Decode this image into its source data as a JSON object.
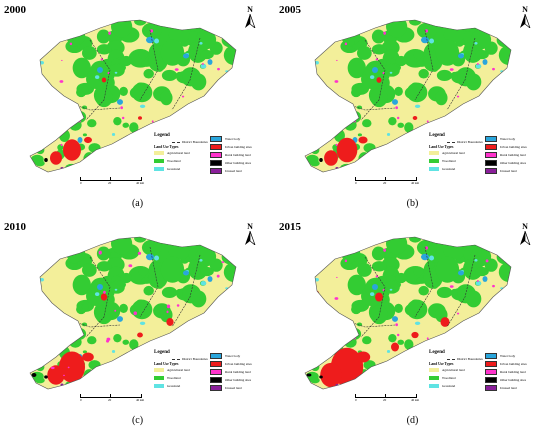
{
  "panels": [
    {
      "year": "2000",
      "caption": "(a)",
      "legend": {
        "title": "Legend",
        "boundary": "District Boundaries",
        "types_title": "Land Use Types",
        "left": [
          "Agricultural land",
          "Woodland",
          "Grassland"
        ],
        "right": [
          "Water body",
          "Urban building sites",
          "Rural building land",
          "Other building sites",
          "Unused land"
        ]
      },
      "scale": [
        "0",
        "20",
        "40 km"
      ]
    },
    {
      "year": "2005",
      "caption": "(b)",
      "legend": {
        "title": "Legend",
        "boundary": "District Boundaries",
        "types_title": "Land Use Types",
        "left": [
          "Agricultural land",
          "Woodland",
          "Grassland"
        ],
        "right": [
          "Water body",
          "Urban building sites",
          "Rural building land",
          "Other building sites",
          "Unused land"
        ]
      },
      "scale": [
        "0",
        "20",
        "40 km"
      ]
    },
    {
      "year": "2010",
      "caption": "(c)",
      "legend": {
        "title": "Legend",
        "boundary": "District Boundaries",
        "types_title": "Land Use Types",
        "left": [
          "Agricultural land",
          "Woodland",
          "Grassland"
        ],
        "right": [
          "Water body",
          "Urban building sites",
          "Rural building land",
          "Other building sites",
          "Unused land"
        ]
      },
      "scale": [
        "0",
        "20",
        "40 km"
      ]
    },
    {
      "year": "2015",
      "caption": "(d)",
      "legend": {
        "title": "Legend",
        "boundary": "District Boundaries",
        "types_title": "Land Use Types",
        "left": [
          "Agricultural land",
          "Woodland",
          "Grassland"
        ],
        "right": [
          "Water body",
          "Urban building sites",
          "Rural building land",
          "Other building sites",
          "Unused land"
        ]
      },
      "scale": [
        "0",
        "20",
        "40 km"
      ]
    }
  ],
  "north_label": "N",
  "colors": {
    "agricultural": "#f3ef9a",
    "woodland": "#33cc33",
    "grassland": "#5fe3e3",
    "water": "#2aa6dc",
    "urban": "#ee1c1c",
    "rural": "#ff33cc",
    "other": "#000000",
    "unused": "#8a1f9a"
  }
}
